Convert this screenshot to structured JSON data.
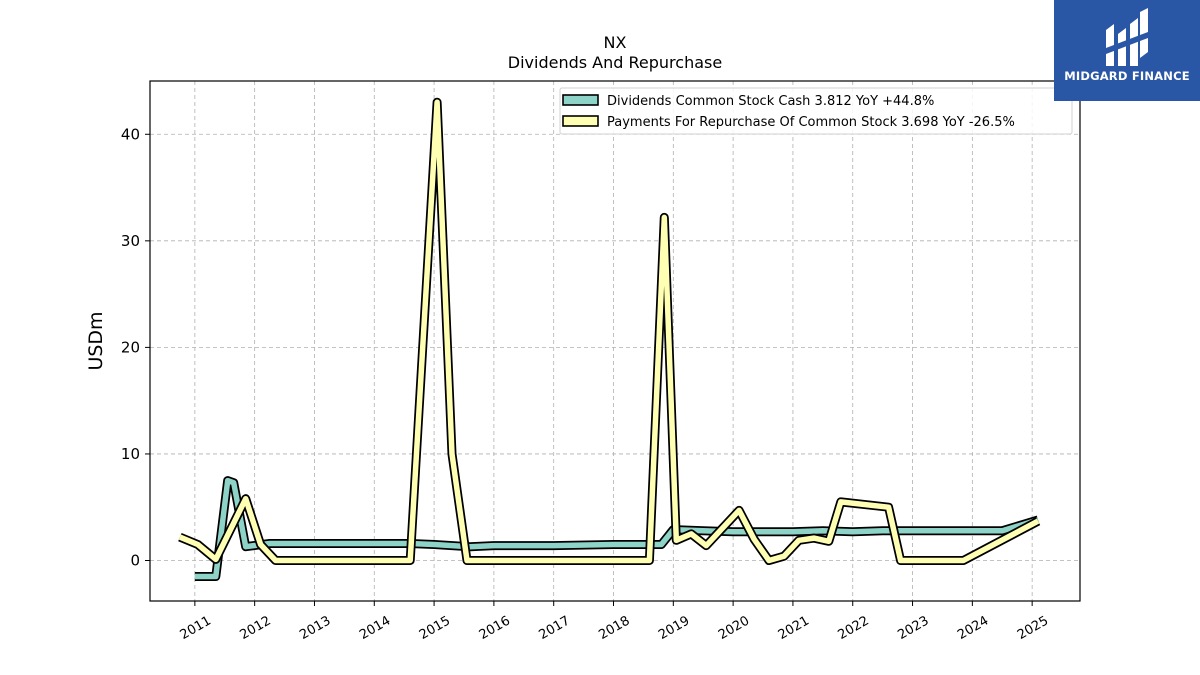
{
  "chart_data": {
    "type": "line",
    "title": "NX",
    "subtitle": "Dividends And Repurchase",
    "ylabel": "USDm",
    "xlabel": "",
    "ylim": [
      -3.8,
      45
    ],
    "xlim": [
      2010.25,
      2025.8
    ],
    "yticks": [
      0,
      10,
      20,
      30,
      40
    ],
    "ytick_labels": [
      "0",
      "10",
      "20",
      "30",
      "40"
    ],
    "xticks": [
      2011,
      2012,
      2013,
      2014,
      2015,
      2016,
      2017,
      2018,
      2019,
      2020,
      2021,
      2022,
      2023,
      2024,
      2025
    ],
    "xtick_labels": [
      "2011",
      "2012",
      "2013",
      "2014",
      "2015",
      "2016",
      "2017",
      "2018",
      "2019",
      "2020",
      "2021",
      "2022",
      "2023",
      "2024",
      "2025"
    ],
    "grid": true,
    "legend_position": "top-right",
    "series": [
      {
        "name": "Dividends Common Stock Cash",
        "legend_label": "Dividends Common Stock Cash  3.812 YoY +44.8%",
        "color": "#8dd3c7",
        "x": [
          2011.0,
          2011.35,
          2011.55,
          2011.65,
          2011.85,
          2012.25,
          2013.0,
          2014.0,
          2014.6,
          2015.0,
          2015.6,
          2016.0,
          2017.0,
          2018.0,
          2018.5,
          2018.8,
          2019.0,
          2019.5,
          2020.0,
          2020.5,
          2021.0,
          2021.5,
          2022.0,
          2022.5,
          2023.0,
          2023.5,
          2024.0,
          2024.5,
          2025.1
        ],
        "y": [
          -1.5,
          -1.5,
          7.5,
          7.3,
          1.3,
          1.6,
          1.6,
          1.6,
          1.6,
          1.5,
          1.3,
          1.4,
          1.4,
          1.5,
          1.5,
          1.5,
          2.9,
          2.8,
          2.7,
          2.7,
          2.7,
          2.8,
          2.7,
          2.8,
          2.8,
          2.8,
          2.8,
          2.8,
          3.812
        ]
      },
      {
        "name": "Payments For Repurchase Of Common Stock",
        "legend_label": "Payments For Repurchase Of Common Stock  3.698 YoY -26.5%",
        "color": "#ffffb3",
        "x": [
          2010.75,
          2011.05,
          2011.35,
          2011.85,
          2012.1,
          2012.35,
          2013.0,
          2014.0,
          2014.6,
          2015.05,
          2015.3,
          2015.55,
          2016.0,
          2017.0,
          2018.0,
          2018.6,
          2018.85,
          2019.05,
          2019.3,
          2019.55,
          2020.1,
          2020.35,
          2020.6,
          2020.85,
          2021.1,
          2021.35,
          2021.6,
          2021.8,
          2022.6,
          2022.8,
          2023.0,
          2023.5,
          2023.85,
          2025.1
        ],
        "y": [
          2.2,
          1.5,
          0.1,
          5.8,
          1.5,
          0.0,
          0.0,
          0.0,
          0.0,
          43.0,
          10.0,
          0.0,
          0.0,
          0.0,
          0.0,
          0.0,
          32.2,
          1.9,
          2.5,
          1.4,
          4.7,
          2.0,
          0.0,
          0.4,
          1.9,
          2.1,
          1.8,
          5.5,
          5.0,
          0.0,
          0.0,
          0.0,
          0.0,
          3.698
        ]
      }
    ]
  },
  "brand": {
    "name": "MIDGARD FINANCE",
    "color": "#2a56a6"
  }
}
